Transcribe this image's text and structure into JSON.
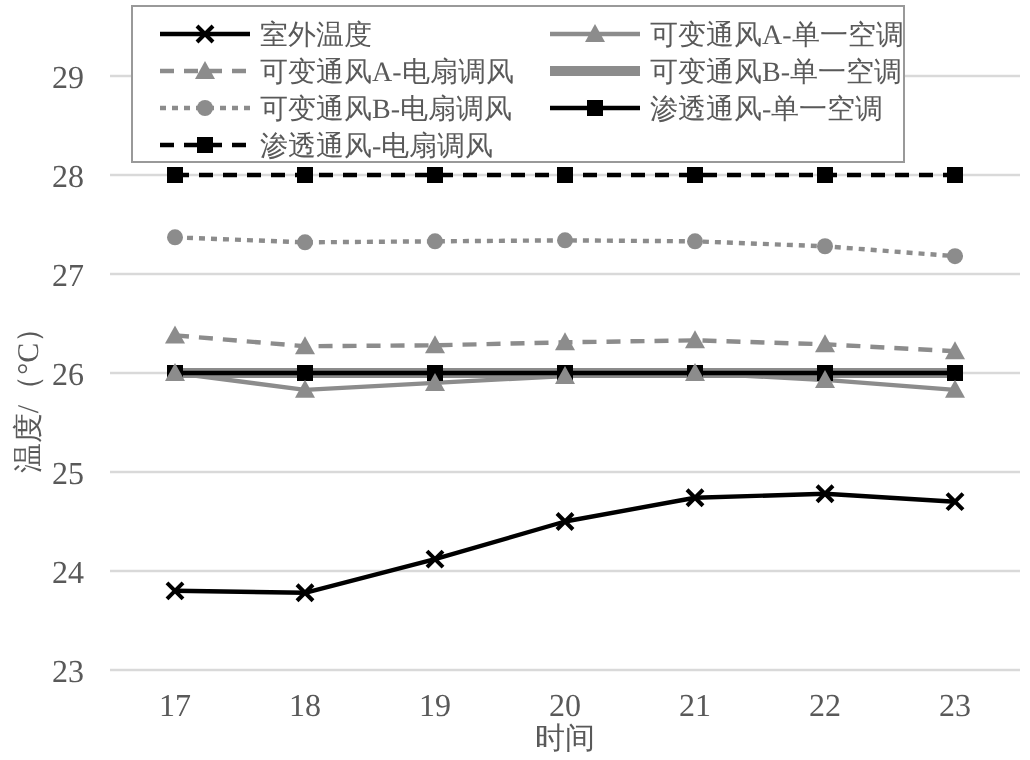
{
  "chart_data": {
    "type": "line",
    "xlabel": "时间",
    "ylabel": "温度/（°C）",
    "categories": [
      "17",
      "18",
      "19",
      "20",
      "21",
      "22",
      "23"
    ],
    "ylim": [
      23,
      29
    ],
    "yticks": [
      23,
      24,
      25,
      26,
      27,
      28,
      29
    ],
    "grid": "y",
    "legend": "top",
    "series": [
      {
        "name": "室外温度",
        "color": "#000000",
        "marker": "cross",
        "line_style": "solid",
        "values": [
          23.8,
          23.78,
          24.12,
          24.5,
          24.74,
          24.78,
          24.7
        ]
      },
      {
        "name": "可变通风A-单一空调",
        "color": "#8c8c8c",
        "marker": "triangle",
        "line_style": "solid",
        "values": [
          26.0,
          25.83,
          25.9,
          25.97,
          26.0,
          25.93,
          25.83
        ]
      },
      {
        "name": "可变通风A-电扇调风",
        "color": "#8c8c8c",
        "marker": "triangle",
        "line_style": "dashed",
        "values": [
          26.38,
          26.27,
          26.28,
          26.31,
          26.33,
          26.29,
          26.22
        ]
      },
      {
        "name": "可变通风B-单一空调",
        "color": "#8c8c8c",
        "marker": "none",
        "line_style": "solid",
        "values": [
          26,
          26,
          26,
          26,
          26,
          26,
          26
        ]
      },
      {
        "name": "可变通风B-电扇调风",
        "color": "#8c8c8c",
        "marker": "circle",
        "line_style": "dotted",
        "values": [
          27.37,
          27.32,
          27.33,
          27.34,
          27.33,
          27.28,
          27.18
        ]
      },
      {
        "name": "渗透通风-单一空调",
        "color": "#000000",
        "marker": "square",
        "line_style": "solid",
        "values": [
          26,
          26,
          26,
          26,
          26,
          26,
          26
        ]
      },
      {
        "name": "渗透通风-电扇调风",
        "color": "#000000",
        "marker": "square",
        "line_style": "dashed",
        "values": [
          28,
          28,
          28,
          28,
          28,
          28,
          28
        ]
      }
    ]
  }
}
